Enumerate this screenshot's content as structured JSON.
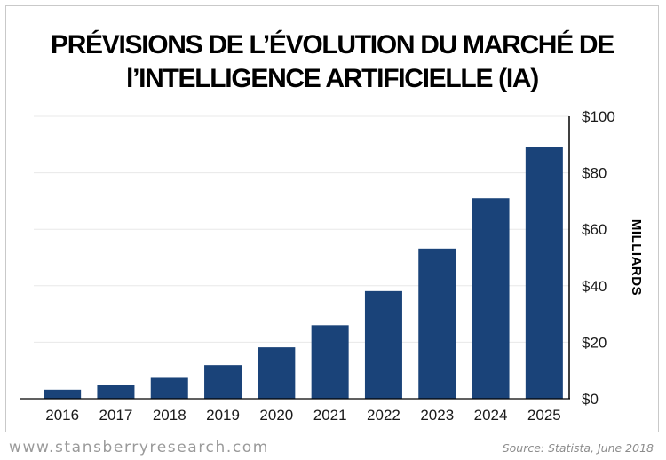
{
  "title_lines": [
    "PRÉVISIONS DE L’ÉVOLUTION DU MARCHÉ DE",
    "l’INTELLIGENCE ARTIFICIELLE (IA)"
  ],
  "footer": {
    "website": "www.stansberryresearch.com",
    "source": "Source: Statista, June 2018"
  },
  "colors": {
    "bar": "#1a4379",
    "grid": "#e8e8e8",
    "axis": "#000000"
  },
  "chart_data": {
    "type": "bar",
    "title": "PRÉVISIONS DE L’ÉVOLUTION DU MARCHÉ DE l’INTELLIGENCE ARTIFICIELLE (IA)",
    "categories": [
      "2016",
      "2017",
      "2018",
      "2019",
      "2020",
      "2021",
      "2022",
      "2023",
      "2024",
      "2025"
    ],
    "values": [
      3.2,
      4.8,
      7.4,
      11.9,
      18.2,
      26.0,
      38.1,
      53.2,
      71.0,
      89.0
    ],
    "xlabel": "",
    "ylabel": "MILLIARDS",
    "ylim": [
      0,
      100
    ],
    "yticks": [
      0,
      20,
      40,
      60,
      80,
      100
    ],
    "ytick_labels": [
      "$0",
      "$20",
      "$40",
      "$60",
      "$80",
      "$100"
    ],
    "y_axis_side": "right",
    "grid": true
  }
}
